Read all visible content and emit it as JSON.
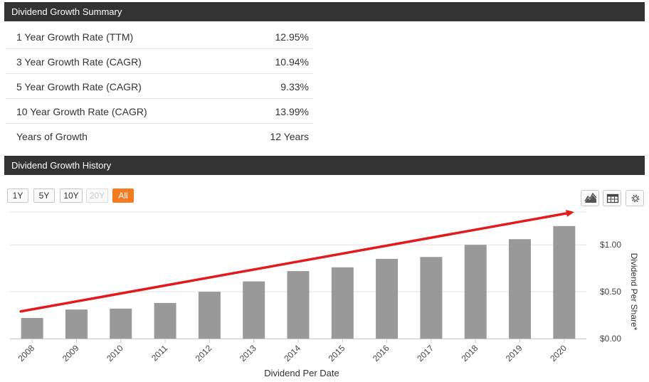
{
  "summary": {
    "title": "Dividend Growth Summary",
    "rows": [
      {
        "label": "1 Year Growth Rate (TTM)",
        "value": "12.95%"
      },
      {
        "label": "3 Year Growth Rate (CAGR)",
        "value": "10.94%"
      },
      {
        "label": "5 Year Growth Rate (CAGR)",
        "value": "9.33%"
      },
      {
        "label": "10 Year Growth Rate (CAGR)",
        "value": "13.99%"
      },
      {
        "label": "Years of Growth",
        "value": "12 Years"
      }
    ]
  },
  "history": {
    "title": "Dividend Growth History",
    "ranges": [
      "1Y",
      "5Y",
      "10Y",
      "20Y",
      "All"
    ],
    "active_range": "All",
    "disabled_range": "20Y",
    "tools": [
      "chart-type-icon",
      "table-icon",
      "settings-icon"
    ]
  },
  "colors": {
    "header_bg": "#333333",
    "bar": "#999999",
    "trend_arrow": "#e31a1c",
    "active_button": "#f47c20"
  },
  "chart_data": {
    "type": "bar",
    "categories": [
      "2008",
      "2009",
      "2010",
      "2011",
      "2012",
      "2013",
      "2014",
      "2015",
      "2016",
      "2017",
      "2018",
      "2019",
      "2020"
    ],
    "values": [
      0.22,
      0.31,
      0.32,
      0.38,
      0.5,
      0.61,
      0.72,
      0.76,
      0.85,
      0.87,
      1.0,
      1.06,
      1.2
    ],
    "xlabel": "Dividend Per Date",
    "ylabel": "Dividend Per Share*",
    "ylim": [
      0,
      1.35
    ],
    "yticks": [
      0,
      0.5,
      1.0
    ],
    "ytick_labels": [
      "$0.00",
      "$0.50",
      "$1.00"
    ],
    "grid": true,
    "trend_arrow": {
      "from": 0.29,
      "to": 1.35
    }
  }
}
